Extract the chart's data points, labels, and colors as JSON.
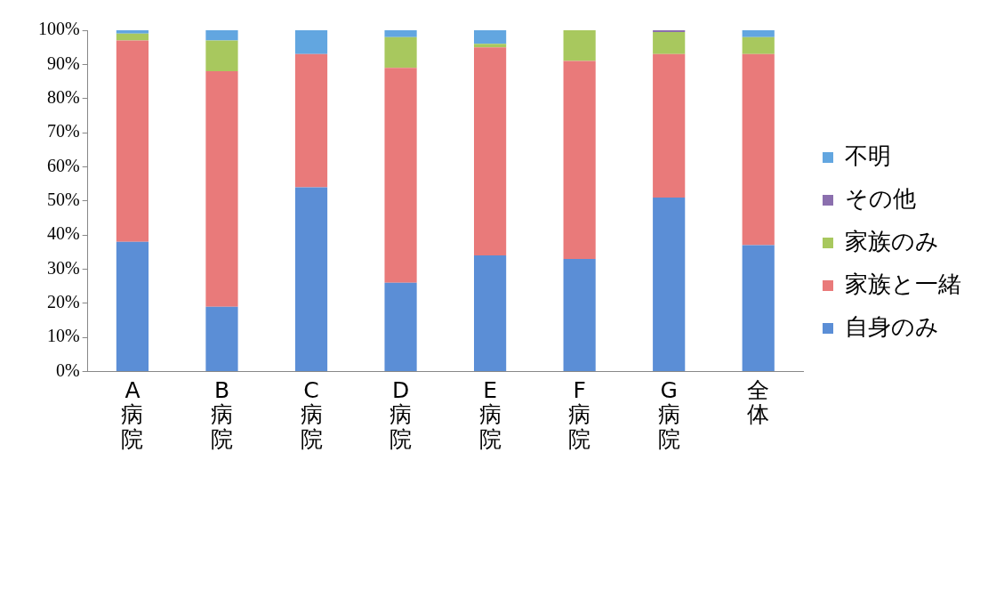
{
  "chart_data": {
    "type": "bar",
    "stacked": true,
    "categories": [
      "A病院",
      "B病院",
      "C病院",
      "D病院",
      "E病院",
      "F病院",
      "G病院",
      "全体"
    ],
    "series": [
      {
        "name": "自身のみ",
        "color": "#5b8ed6",
        "values": [
          38,
          19,
          54,
          26,
          34,
          33,
          51,
          37
        ]
      },
      {
        "name": "家族と一緒",
        "color": "#e97a7a",
        "values": [
          59,
          69,
          39,
          63,
          61,
          58,
          42,
          56
        ]
      },
      {
        "name": "家族のみ",
        "color": "#a8c85e",
        "values": [
          2,
          9,
          0,
          9,
          1,
          9,
          6.5,
          5
        ]
      },
      {
        "name": "その他",
        "color": "#8b6fae",
        "values": [
          0,
          0,
          0,
          0,
          0,
          0,
          0.5,
          0
        ]
      },
      {
        "name": "不明",
        "color": "#62a6e0",
        "values": [
          1,
          3,
          7,
          2,
          4,
          0,
          0,
          2
        ]
      }
    ],
    "ylim": [
      0,
      100
    ],
    "yticks": [
      {
        "value": 0,
        "label": "0%"
      },
      {
        "value": 10,
        "label": "10%"
      },
      {
        "value": 20,
        "label": "20%"
      },
      {
        "value": 30,
        "label": "30%"
      },
      {
        "value": 40,
        "label": "40%"
      },
      {
        "value": 50,
        "label": "50%"
      },
      {
        "value": 60,
        "label": "60%"
      },
      {
        "value": 70,
        "label": "70%"
      },
      {
        "value": 80,
        "label": "80%"
      },
      {
        "value": 90,
        "label": "90%"
      },
      {
        "value": 100,
        "label": "100%"
      }
    ],
    "grid": false,
    "legend": "right"
  }
}
